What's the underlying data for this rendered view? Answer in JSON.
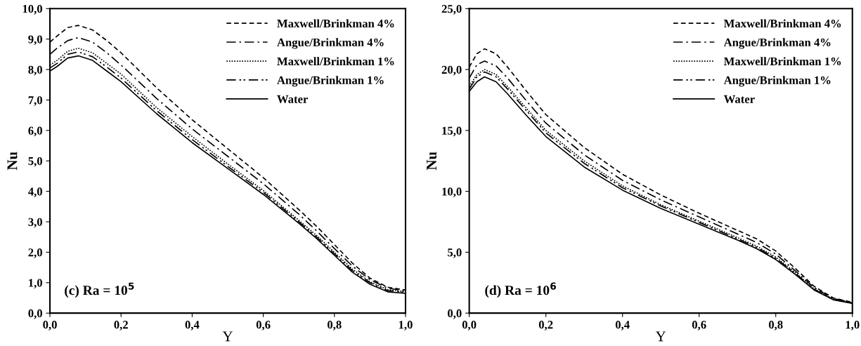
{
  "chart_data": [
    {
      "type": "line",
      "xlabel": "Y",
      "ylabel": "Nu",
      "annotations": [
        "(c) Ra = 10$^{5}$"
      ],
      "legend": "top right",
      "grid": false,
      "marker": "none",
      "x": [
        0,
        0.02,
        0.05,
        0.08,
        0.12,
        0.16,
        0.2,
        0.3,
        0.4,
        0.5,
        0.6,
        0.7,
        0.75,
        0.8,
        0.85,
        0.9,
        0.95,
        1.0
      ],
      "xlim": [
        0,
        1
      ],
      "xticks": [
        {
          "value": 0,
          "label": "0,0"
        },
        {
          "value": 0.2,
          "label": "0,2"
        },
        {
          "value": 0.4,
          "label": "0,4"
        },
        {
          "value": 0.6,
          "label": "0,6"
        },
        {
          "value": 0.8,
          "label": "0,8"
        },
        {
          "value": 1,
          "label": "1,0"
        }
      ],
      "ylim": [
        0,
        10
      ],
      "yticks": [
        {
          "value": 0,
          "label": "0,0"
        },
        {
          "value": 1,
          "label": "1,0"
        },
        {
          "value": 2,
          "label": "2,0"
        },
        {
          "value": 3,
          "label": "3,0"
        },
        {
          "value": 4,
          "label": "4,0"
        },
        {
          "value": 5,
          "label": "5,0"
        },
        {
          "value": 6,
          "label": "6,0"
        },
        {
          "value": 7,
          "label": "7,0"
        },
        {
          "value": 8,
          "label": "8,0"
        },
        {
          "value": 9,
          "label": "9,0"
        },
        {
          "value": 10,
          "label": "10,0"
        }
      ],
      "series": [
        {
          "name": "Maxwell/Brinkman 4%",
          "color": "#000000",
          "line_style": "dashed",
          "values": [
            8.9,
            9.1,
            9.38,
            9.45,
            9.3,
            8.95,
            8.55,
            7.4,
            6.35,
            5.4,
            4.45,
            3.4,
            2.85,
            2.25,
            1.65,
            1.15,
            0.85,
            0.76
          ]
        },
        {
          "name": "Angue/Brinkman 4%",
          "color": "#000000",
          "line_style": "dashdot",
          "values": [
            8.5,
            8.7,
            8.95,
            9.05,
            8.9,
            8.55,
            8.15,
            7.05,
            6.05,
            5.15,
            4.25,
            3.25,
            2.7,
            2.12,
            1.55,
            1.1,
            0.82,
            0.73
          ]
        },
        {
          "name": "Maxwell/Brinkman 1%",
          "color": "#000000",
          "line_style": "dotted",
          "values": [
            8.15,
            8.3,
            8.6,
            8.7,
            8.55,
            8.2,
            7.85,
            6.75,
            5.8,
            4.9,
            4.03,
            3.05,
            2.55,
            2.0,
            1.45,
            1.03,
            0.77,
            0.7
          ]
        },
        {
          "name": "Angue/Brinkman 1%",
          "color": "#000000",
          "line_style": "dashdotdot",
          "values": [
            8.05,
            8.2,
            8.5,
            8.58,
            8.42,
            8.08,
            7.72,
            6.65,
            5.7,
            4.82,
            3.97,
            3.0,
            2.5,
            1.95,
            1.4,
            1.0,
            0.74,
            0.68
          ]
        },
        {
          "name": "Water",
          "color": "#000000",
          "line_style": "solid",
          "values": [
            7.95,
            8.1,
            8.38,
            8.45,
            8.3,
            7.95,
            7.6,
            6.55,
            5.6,
            4.75,
            3.9,
            2.95,
            2.45,
            1.9,
            1.35,
            0.95,
            0.7,
            0.65
          ]
        }
      ]
    },
    {
      "type": "line",
      "xlabel": "Y",
      "ylabel": "Nu",
      "annotations": [
        "(d) Ra = 10$^{6}$"
      ],
      "legend": "top right",
      "grid": false,
      "marker": "none",
      "x": [
        0,
        0.02,
        0.04,
        0.07,
        0.1,
        0.15,
        0.2,
        0.3,
        0.4,
        0.5,
        0.6,
        0.7,
        0.75,
        0.8,
        0.85,
        0.9,
        0.95,
        1.0
      ],
      "xlim": [
        0,
        1
      ],
      "xticks": [
        {
          "value": 0,
          "label": "0,0"
        },
        {
          "value": 0.2,
          "label": "0,2"
        },
        {
          "value": 0.4,
          "label": "0,4"
        },
        {
          "value": 0.6,
          "label": "0,6"
        },
        {
          "value": 0.8,
          "label": "0,8"
        },
        {
          "value": 1,
          "label": "1,0"
        }
      ],
      "ylim": [
        0,
        25
      ],
      "yticks": [
        {
          "value": 0,
          "label": "0,0"
        },
        {
          "value": 5,
          "label": "5,0"
        },
        {
          "value": 10,
          "label": "10,0"
        },
        {
          "value": 15,
          "label": "15,0"
        },
        {
          "value": 20,
          "label": "20,0"
        },
        {
          "value": 25,
          "label": "25,0"
        }
      ],
      "series": [
        {
          "name": "Maxwell/Brinkman 4%",
          "color": "#000000",
          "line_style": "dashed",
          "values": [
            20.2,
            21.3,
            21.7,
            21.3,
            20.2,
            18.2,
            16.3,
            13.6,
            11.4,
            9.7,
            8.2,
            6.8,
            6.1,
            5.1,
            3.7,
            2.2,
            1.25,
            0.88
          ]
        },
        {
          "name": "Angue/Brinkman 4%",
          "color": "#000000",
          "line_style": "dashdot",
          "values": [
            19.3,
            20.4,
            20.7,
            20.3,
            19.3,
            17.4,
            15.6,
            13.0,
            10.9,
            9.3,
            7.9,
            6.5,
            5.8,
            4.85,
            3.5,
            2.1,
            1.2,
            0.86
          ]
        },
        {
          "name": "Maxwell/Brinkman 1%",
          "color": "#000000",
          "line_style": "dotted",
          "values": [
            18.6,
            19.6,
            20.0,
            19.6,
            18.6,
            16.8,
            15.0,
            12.5,
            10.45,
            8.9,
            7.55,
            6.2,
            5.5,
            4.6,
            3.35,
            2.0,
            1.15,
            0.84
          ]
        },
        {
          "name": "Angue/Brinkman 1%",
          "color": "#000000",
          "line_style": "dashdotdot",
          "values": [
            18.4,
            19.4,
            19.8,
            19.4,
            18.4,
            16.6,
            14.8,
            12.3,
            10.3,
            8.8,
            7.45,
            6.1,
            5.4,
            4.5,
            3.3,
            1.95,
            1.12,
            0.82
          ]
        },
        {
          "name": "Water",
          "color": "#000000",
          "line_style": "solid",
          "values": [
            18.2,
            19.0,
            19.4,
            19.0,
            18.0,
            16.2,
            14.5,
            12.0,
            10.1,
            8.6,
            7.3,
            6.0,
            5.3,
            4.4,
            3.2,
            1.9,
            1.1,
            0.8
          ]
        }
      ]
    }
  ]
}
